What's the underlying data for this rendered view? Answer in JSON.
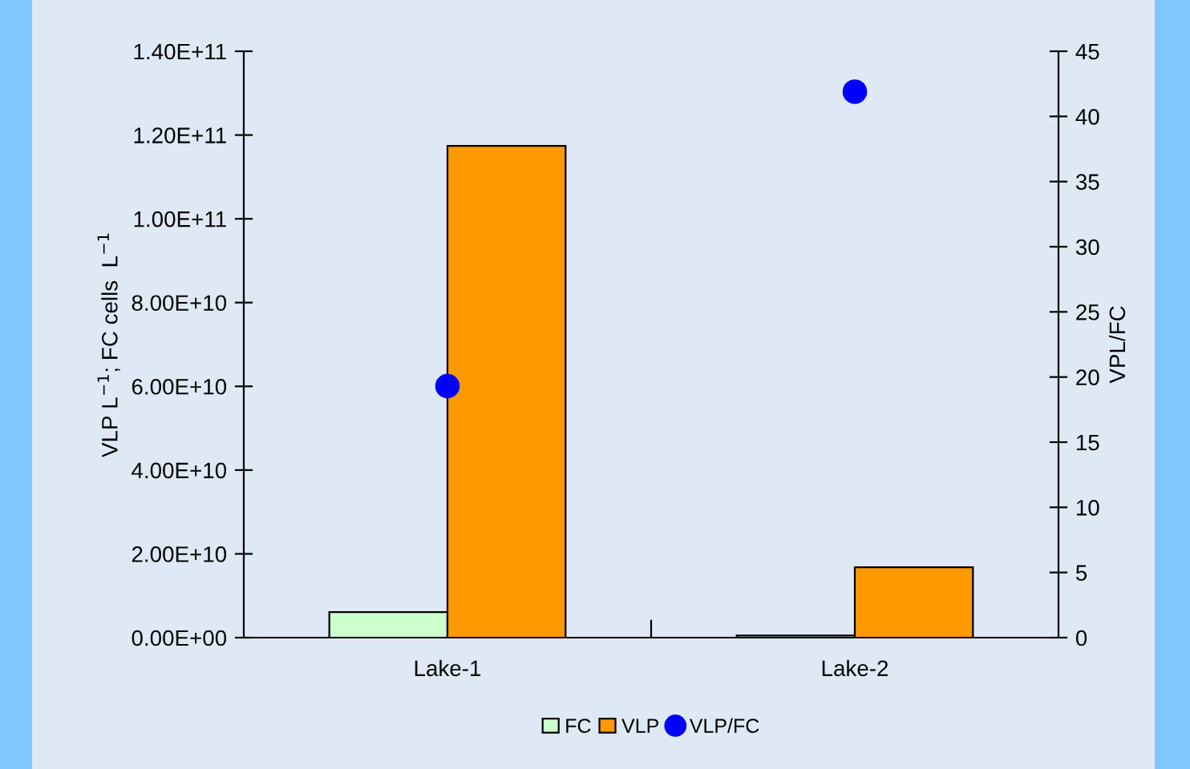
{
  "chart_data": {
    "type": "bar",
    "categories": [
      "Lake-1",
      "Lake-2"
    ],
    "series": [
      {
        "name": "FC",
        "color": "#ccffcc",
        "values": [
          6100000000.0,
          500000000.0
        ]
      },
      {
        "name": "VLP",
        "color": "#ff9900",
        "values": [
          117400000000.0,
          16800000000.0
        ]
      },
      {
        "name": "VLP/FC",
        "type": "scatter",
        "axis": "y2",
        "color": "#0000ff",
        "values": [
          19.3,
          41.9
        ]
      }
    ],
    "ylabel": "VLP L$^{−1}$; FC cells  L$^{−1}$",
    "y2label": "VPL/FC",
    "ylim": [
      0,
      140000000000.0
    ],
    "yticks": [
      {
        "value": 0,
        "label": "0.00E+00"
      },
      {
        "value": 20000000000.0,
        "label": "2.00E+10"
      },
      {
        "value": 40000000000.0,
        "label": "4.00E+10"
      },
      {
        "value": 60000000000.0,
        "label": "6.00E+10"
      },
      {
        "value": 80000000000.0,
        "label": "8.00E+10"
      },
      {
        "value": 100000000000.0,
        "label": "1.00E+11"
      },
      {
        "value": 120000000000.0,
        "label": "1.20E+11"
      },
      {
        "value": 140000000000.0,
        "label": "1.40E+11"
      }
    ],
    "y2lim": [
      0,
      45
    ],
    "y2ticks": [
      0,
      5,
      10,
      15,
      20,
      25,
      30,
      35,
      40,
      45
    ],
    "marker": "circle",
    "grid": false,
    "legend": "bottom"
  }
}
